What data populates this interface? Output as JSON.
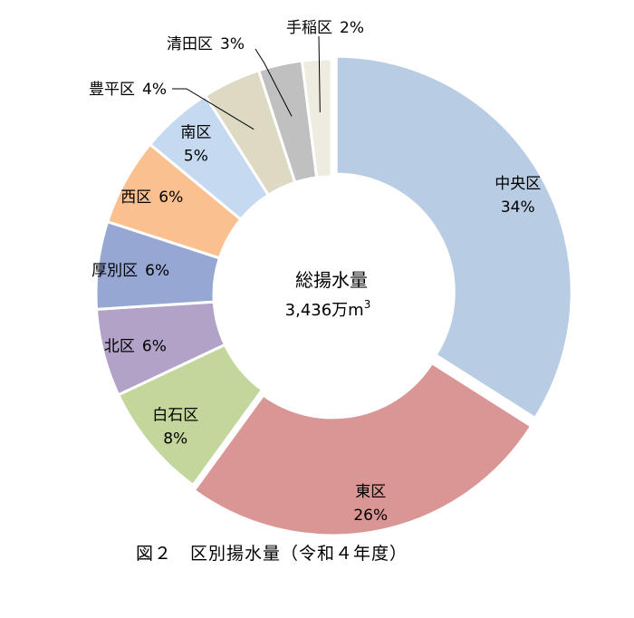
{
  "figure": {
    "caption": "図２　区別揚水量（令和４年度）"
  },
  "center": {
    "line1": "総揚水量",
    "line2": "3,436万m",
    "sup": "3"
  },
  "chart_data": {
    "type": "pie",
    "donut": true,
    "categories": [
      "中央区",
      "東区",
      "白石区",
      "北区",
      "厚別区",
      "西区",
      "南区",
      "豊平区",
      "清田区",
      "手稲区"
    ],
    "values": [
      34,
      26,
      8,
      6,
      6,
      6,
      5,
      4,
      3,
      2
    ],
    "value_labels": [
      "34%",
      "26%",
      "8%",
      "6%",
      "6%",
      "6%",
      "5%",
      "4%",
      "3%",
      "2%"
    ],
    "colors": [
      "#b8cce4",
      "#d99694",
      "#c3d69b",
      "#b2a2c7",
      "#95a7d2",
      "#fac090",
      "#c5d9f1",
      "#ddd9c3",
      "#c0c0c0",
      "#eeece1"
    ],
    "exploded": [
      "中央区",
      "東区"
    ]
  }
}
